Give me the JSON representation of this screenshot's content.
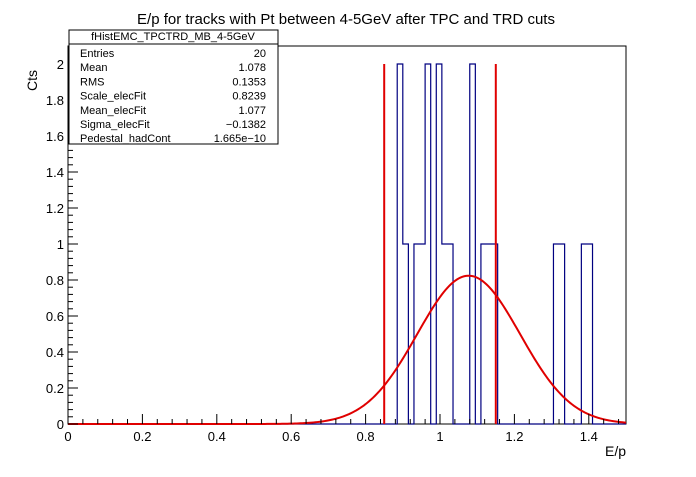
{
  "chart_data": {
    "type": "histogram",
    "title": "E/p for tracks with Pt between 4-5GeV after TPC and TRD cuts",
    "xlabel": "E/p",
    "ylabel": "Cts",
    "xlim": [
      0,
      1.5
    ],
    "ylim": [
      0,
      2.1
    ],
    "x_ticks": [
      "0",
      "0.2",
      "0.4",
      "0.6",
      "0.8",
      "1",
      "1.2",
      "1.4"
    ],
    "y_ticks": [
      "0",
      "0.2",
      "0.4",
      "0.6",
      "0.8",
      "1",
      "1.2",
      "1.4",
      "1.6",
      "1.8",
      "2"
    ],
    "bin_width": 0.015,
    "histogram": {
      "bins": [
        {
          "x": 0.885,
          "count": 2
        },
        {
          "x": 0.9,
          "count": 1
        },
        {
          "x": 0.93,
          "count": 1
        },
        {
          "x": 0.945,
          "count": 1
        },
        {
          "x": 0.96,
          "count": 2
        },
        {
          "x": 0.99,
          "count": 2
        },
        {
          "x": 1.005,
          "count": 1
        },
        {
          "x": 1.02,
          "count": 1
        },
        {
          "x": 1.08,
          "count": 2
        },
        {
          "x": 1.11,
          "count": 1
        },
        {
          "x": 1.125,
          "count": 1
        },
        {
          "x": 1.14,
          "count": 1
        },
        {
          "x": 1.305,
          "count": 1
        },
        {
          "x": 1.32,
          "count": 1
        },
        {
          "x": 1.38,
          "count": 1
        },
        {
          "x": 1.395,
          "count": 1
        }
      ],
      "color": "#000080"
    },
    "fit": {
      "type": "gaussian",
      "scale": 0.8239,
      "mean": 1.077,
      "sigma": 0.1382,
      "pedestal": 1.665e-10,
      "color": "#e00000"
    },
    "markers": [
      {
        "x": 0.85,
        "y": 2,
        "color": "#e00000"
      },
      {
        "x": 1.15,
        "y": 2,
        "color": "#e00000"
      }
    ],
    "stats_box": {
      "title": "fHistEMC_TPCTRD_MB_4-5GeV",
      "rows": [
        {
          "label": "Entries",
          "value": "20"
        },
        {
          "label": "Mean",
          "value": "1.078"
        },
        {
          "label": "RMS",
          "value": "0.1353"
        },
        {
          "label": "Scale_elecFit",
          "value": "0.8239"
        },
        {
          "label": "Mean_elecFit",
          "value": "1.077"
        },
        {
          "label": "Sigma_elecFit",
          "value": "−0.1382"
        },
        {
          "label": "Pedestal_hadCont",
          "value": "1.665e−10"
        }
      ]
    }
  }
}
